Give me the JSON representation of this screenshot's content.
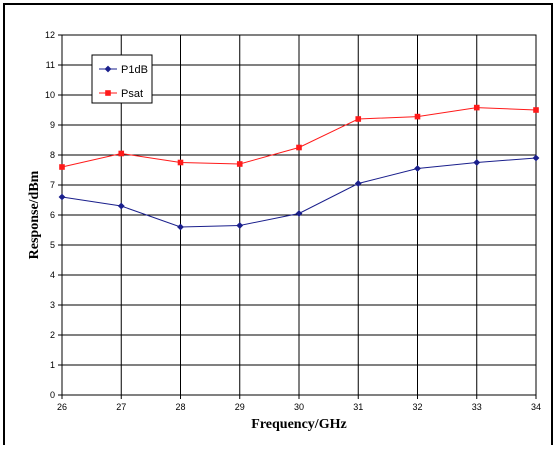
{
  "chart_data": {
    "type": "line",
    "title": "",
    "xlabel": "Frequency/GHz",
    "ylabel": "Response/dBm",
    "x": [
      26,
      27,
      28,
      29,
      30,
      31,
      32,
      33,
      34
    ],
    "xlim": [
      26,
      34
    ],
    "ylim": [
      0,
      12
    ],
    "x_ticks": [
      "26",
      "27",
      "28",
      "29",
      "30",
      "31",
      "32",
      "33",
      "34"
    ],
    "y_ticks": [
      "0",
      "1",
      "2",
      "3",
      "4",
      "5",
      "6",
      "7",
      "8",
      "9",
      "10",
      "11",
      "12"
    ],
    "grid": true,
    "legend_position": "top-left",
    "series": [
      {
        "name": "P1dB",
        "color": "#1a1f8c",
        "marker": "diamond",
        "values": [
          6.6,
          6.3,
          5.6,
          5.65,
          6.05,
          7.05,
          7.55,
          7.75,
          7.9
        ]
      },
      {
        "name": "Psat",
        "color": "#ff1a1a",
        "marker": "square",
        "values": [
          7.6,
          8.05,
          7.75,
          7.7,
          8.25,
          9.2,
          9.28,
          9.58,
          9.5
        ]
      }
    ]
  }
}
